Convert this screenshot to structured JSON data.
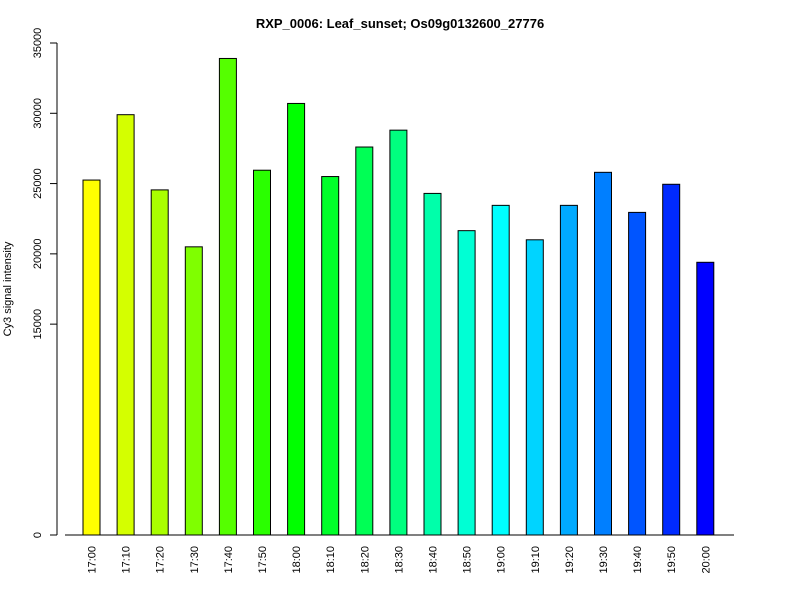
{
  "chart_data": {
    "type": "bar",
    "title": "RXP_0006: Leaf_sunset; Os09g0132600_27776",
    "xlabel": "",
    "ylabel": "Cy3 signal intensity",
    "y_ticks": [
      0,
      15000,
      20000,
      25000,
      30000,
      35000
    ],
    "y_tick_labels": [
      "0",
      "15000",
      "20000",
      "25000",
      "30000",
      "35000"
    ],
    "categories": [
      "17:00",
      "17:10",
      "17:20",
      "17:30",
      "17:40",
      "17:50",
      "18:00",
      "18:10",
      "18:20",
      "18:30",
      "18:40",
      "18:50",
      "19:00",
      "19:10",
      "19:20",
      "19:30",
      "19:40",
      "19:50",
      "20:00"
    ],
    "values": [
      25250,
      29900,
      24550,
      20500,
      33900,
      25950,
      30700,
      25500,
      27600,
      28800,
      24300,
      21650,
      23450,
      21000,
      23450,
      25800,
      22950,
      24950,
      19400
    ],
    "colors": [
      "#FFFF00",
      "#D4FF00",
      "#AAFF00",
      "#7FFF00",
      "#55FF00",
      "#2AFF00",
      "#00FF00",
      "#00FF2A",
      "#00FF55",
      "#00FF7F",
      "#00FFAA",
      "#00FFD4",
      "#00FFFF",
      "#00D4FF",
      "#00AAFF",
      "#007FFF",
      "#0055FF",
      "#002AFF",
      "#0000FF"
    ],
    "grid": false,
    "legend": "none"
  }
}
